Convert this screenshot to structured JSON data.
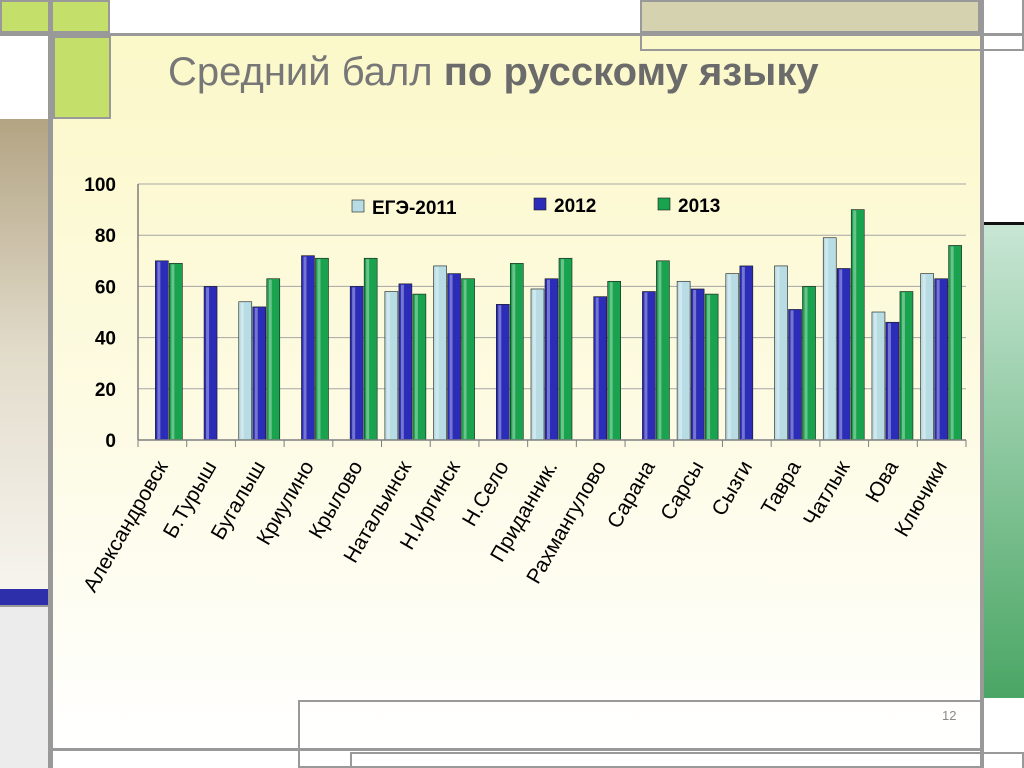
{
  "slide": {
    "title_regular": "Средний балл ",
    "title_bold": "по русскому языку",
    "page_number": "12"
  },
  "colors": {
    "ege2011": "#b7dce4",
    "y2012": "#2b2db8",
    "y2013": "#19a34e"
  },
  "chart_data": {
    "type": "bar",
    "categories": [
      "Александровск",
      "Б.Турыш",
      "Бугалыш",
      "Криулино",
      "Крылово",
      "Натальинск",
      "Н.Иргинск",
      "Н.Село",
      "Приданник.",
      "Рахмангулово",
      "Сарана",
      "Сарсы",
      "Сызги",
      "Тавра",
      "Чатлык",
      "Юва",
      "Ключики"
    ],
    "series": [
      {
        "name": "ЕГЭ-2011",
        "values": [
          null,
          null,
          54,
          null,
          null,
          58,
          68,
          null,
          59,
          null,
          null,
          62,
          65,
          68,
          79,
          50,
          65
        ]
      },
      {
        "name": "2012",
        "values": [
          70,
          60,
          52,
          72,
          60,
          61,
          65,
          53,
          63,
          56,
          58,
          59,
          68,
          51,
          67,
          46,
          63
        ]
      },
      {
        "name": "2013",
        "values": [
          69,
          null,
          63,
          71,
          71,
          57,
          63,
          69,
          71,
          62,
          70,
          57,
          null,
          60,
          90,
          58,
          76
        ]
      }
    ],
    "yticks": [
      "0",
      "20",
      "40",
      "60",
      "80",
      "100"
    ],
    "ylim": [
      0,
      100
    ],
    "grid": true,
    "legend": "top"
  }
}
